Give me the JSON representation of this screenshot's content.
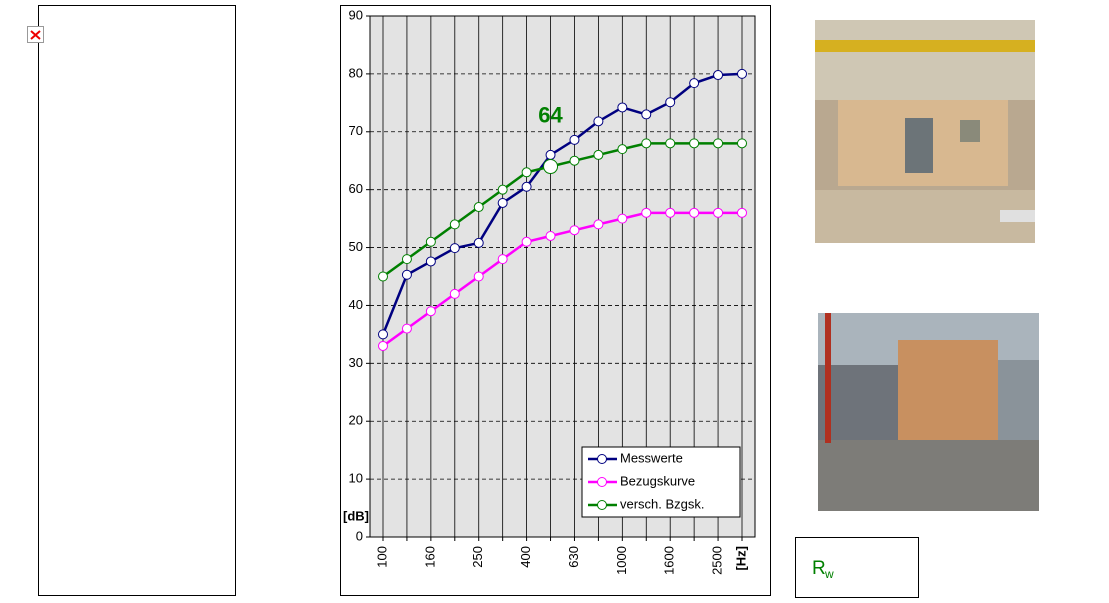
{
  "chart_data": {
    "type": "line",
    "categories": [
      "100",
      null,
      "160",
      null,
      "250",
      null,
      "400",
      null,
      "630",
      null,
      "1000",
      null,
      "1600",
      null,
      "2500",
      null
    ],
    "series": [
      {
        "name": "Messwerte",
        "color": "#000080",
        "values": [
          35,
          45.3,
          47.6,
          49.9,
          50.8,
          57.7,
          60.5,
          66,
          68.6,
          71.8,
          74.2,
          73,
          75.1,
          78.4,
          79.8,
          80
        ]
      },
      {
        "name": "Bezugskurve",
        "color": "#ff00ff",
        "values": [
          33,
          36,
          39,
          42,
          45,
          48,
          51,
          52,
          53,
          54,
          55,
          56,
          56,
          56,
          56,
          56
        ]
      },
      {
        "name": "versch. Bzgsk.",
        "color": "#008000",
        "values": [
          45,
          48,
          51,
          54,
          57,
          60,
          63,
          64,
          65,
          66,
          67,
          68,
          68,
          68,
          68,
          68
        ]
      }
    ],
    "y_label": "[dB]",
    "x_label": "[Hz]",
    "annotations": [
      {
        "label": "64",
        "value": 64,
        "color": "#008000"
      }
    ],
    "ylim": [
      0,
      90
    ],
    "yticks": [
      0,
      10,
      20,
      30,
      40,
      50,
      60,
      70,
      80,
      90
    ],
    "grid": true,
    "legend": "lower right"
  },
  "rw_box": {
    "symbol": "R",
    "subscript": "w"
  }
}
